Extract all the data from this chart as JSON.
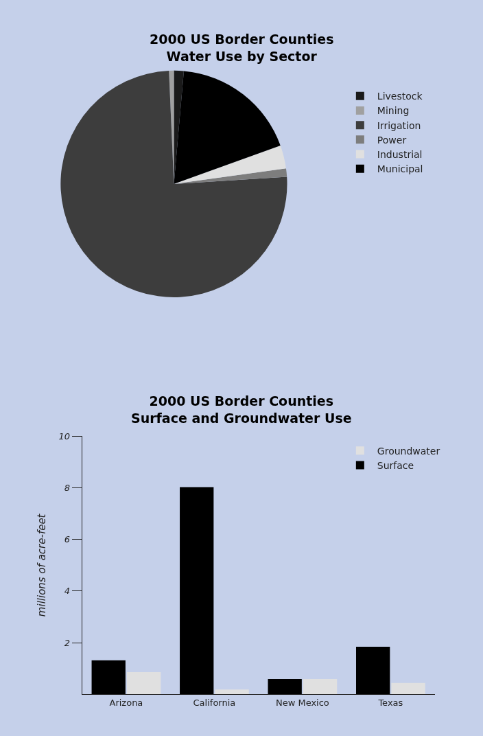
{
  "chart_data": [
    {
      "type": "pie",
      "title": "2000 US Border Counties\nWater Use by Sector",
      "categories": [
        "Livestock",
        "Mining",
        "Irrigation",
        "Power",
        "Industrial",
        "Municipal"
      ],
      "values": [
        1.4,
        0.7,
        75.3,
        1.2,
        3.3,
        18.1
      ],
      "colors": [
        "#1a1a1a",
        "#a0a0a0",
        "#3d3d3d",
        "#7d7d7d",
        "#e0e0e0",
        "#000000"
      ],
      "legend": "right"
    },
    {
      "type": "bar",
      "title": "2000 US Border Counties\nSurface and Groundwater Use",
      "ylabel": "millions of acre-feet",
      "categories": [
        "Arizona",
        "California",
        "New Mexico",
        "Texas"
      ],
      "series": [
        {
          "name": "Surface",
          "color": "#000000",
          "values": [
            1.32,
            8.03,
            0.59,
            1.84
          ]
        },
        {
          "name": "Groundwater",
          "color": "#e0e0e0",
          "values": [
            0.86,
            0.19,
            0.59,
            0.44
          ]
        }
      ],
      "ylim": [
        0,
        10
      ],
      "yticks": [
        2,
        4,
        6,
        8,
        10
      ],
      "legend": "top right"
    }
  ]
}
